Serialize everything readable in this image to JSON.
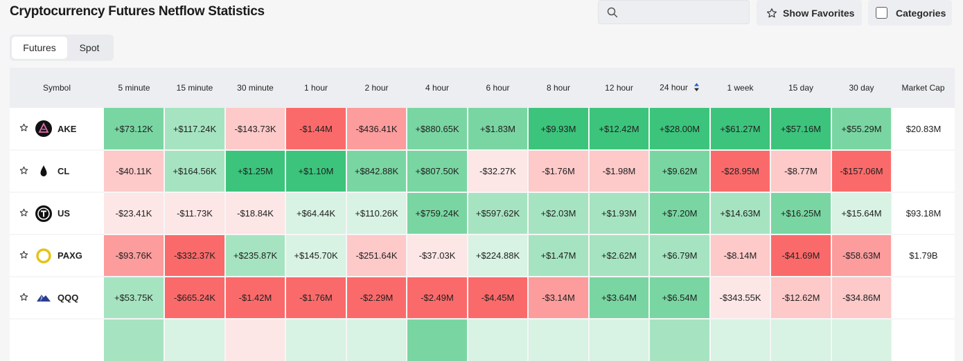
{
  "header": {
    "title": "Cryptocurrency Futures Netflow Statistics"
  },
  "search": {
    "placeholder": ""
  },
  "buttons": {
    "show_favorites": "Show Favorites",
    "categories": "Categories"
  },
  "tabs": [
    {
      "label": "Futures",
      "active": true
    },
    {
      "label": "Spot",
      "active": false
    }
  ],
  "table": {
    "columns": [
      "Symbol",
      "5 minute",
      "15 minute",
      "30 minute",
      "1 hour",
      "2 hour",
      "4 hour",
      "6 hour",
      "8 hour",
      "12 hour",
      "24 hour",
      "1 week",
      "15 day",
      "30 day",
      "Market Cap"
    ],
    "sorted_column": "24 hour",
    "colors": {
      "pos_strong": "#3cc47c",
      "pos_med": "#79d6a2",
      "pos_light": "#a6e4c1",
      "pos_faint": "#d8f2e3",
      "neg_strong": "#fb6a6a",
      "neg_med": "#fc9c9c",
      "neg_light": "#fdc9c9",
      "neg_faint": "#fde6e6",
      "icon_stroke": "#2a2a2a",
      "sort_accent": "#1f5ed8"
    },
    "rows": [
      {
        "symbol": "AKE",
        "icon": "ake-coin-icon",
        "market_cap": "$20.83M",
        "values": [
          "+$73.12K",
          "+$117.24K",
          "-$143.73K",
          "-$1.44M",
          "-$436.41K",
          "+$880.65K",
          "+$1.83M",
          "+$9.93M",
          "+$12.42M",
          "+$28.00M",
          "+$61.27M",
          "+$57.16M",
          "+$55.29M"
        ],
        "levels": [
          "pos_med",
          "pos_light",
          "neg_light",
          "neg_strong",
          "neg_med",
          "pos_med",
          "pos_med",
          "pos_strong",
          "pos_strong",
          "pos_strong",
          "pos_strong",
          "pos_strong",
          "pos_med"
        ]
      },
      {
        "symbol": "CL",
        "icon": "oil-drop-icon",
        "market_cap": "",
        "values": [
          "-$40.11K",
          "+$164.56K",
          "+$1.25M",
          "+$1.10M",
          "+$842.88K",
          "+$807.50K",
          "-$32.27K",
          "-$1.76M",
          "-$1.98M",
          "+$9.62M",
          "-$28.95M",
          "-$8.77M",
          "-$157.06M"
        ],
        "levels": [
          "neg_light",
          "pos_light",
          "pos_strong",
          "pos_strong",
          "pos_med",
          "pos_med",
          "neg_faint",
          "neg_light",
          "neg_light",
          "pos_med",
          "neg_strong",
          "neg_light",
          "neg_strong"
        ]
      },
      {
        "symbol": "US",
        "icon": "us-coin-icon",
        "market_cap": "$93.18M",
        "values": [
          "-$23.41K",
          "-$11.73K",
          "-$18.84K",
          "+$64.44K",
          "+$110.26K",
          "+$759.24K",
          "+$597.62K",
          "+$2.03M",
          "+$1.93M",
          "+$7.20M",
          "+$14.63M",
          "+$16.25M",
          "+$15.64M"
        ],
        "levels": [
          "neg_faint",
          "neg_faint",
          "neg_faint",
          "pos_faint",
          "pos_faint",
          "pos_med",
          "pos_light",
          "pos_light",
          "pos_light",
          "pos_med",
          "pos_light",
          "pos_med",
          "pos_faint"
        ]
      },
      {
        "symbol": "PAXG",
        "icon": "paxg-coin-icon",
        "market_cap": "$1.79B",
        "values": [
          "-$93.76K",
          "-$332.37K",
          "+$235.87K",
          "+$145.70K",
          "-$251.64K",
          "-$37.03K",
          "+$224.88K",
          "+$1.47M",
          "+$2.62M",
          "+$6.79M",
          "-$8.14M",
          "-$41.69M",
          "-$58.63M"
        ],
        "levels": [
          "neg_med",
          "neg_strong",
          "pos_light",
          "pos_faint",
          "neg_light",
          "neg_faint",
          "pos_faint",
          "pos_light",
          "pos_light",
          "pos_light",
          "neg_light",
          "neg_strong",
          "neg_med"
        ]
      },
      {
        "symbol": "QQQ",
        "icon": "qqq-coin-icon",
        "market_cap": "",
        "values": [
          "+$53.75K",
          "-$665.24K",
          "-$1.42M",
          "-$1.76M",
          "-$2.29M",
          "-$2.49M",
          "-$4.45M",
          "-$3.14M",
          "+$3.64M",
          "+$6.54M",
          "-$343.55K",
          "-$12.62M",
          "-$34.86M"
        ],
        "levels": [
          "pos_light",
          "neg_strong",
          "neg_strong",
          "neg_strong",
          "neg_strong",
          "neg_strong",
          "neg_strong",
          "neg_med",
          "pos_med",
          "pos_med",
          "neg_faint",
          "neg_light",
          "neg_light"
        ]
      }
    ],
    "partial_row_levels": [
      "pos_light",
      "pos_faint",
      "neg_faint",
      "pos_faint",
      "pos_faint",
      "pos_med",
      "pos_faint",
      "pos_faint",
      "pos_faint",
      "pos_light",
      "pos_faint",
      "pos_faint",
      "pos_faint"
    ]
  }
}
